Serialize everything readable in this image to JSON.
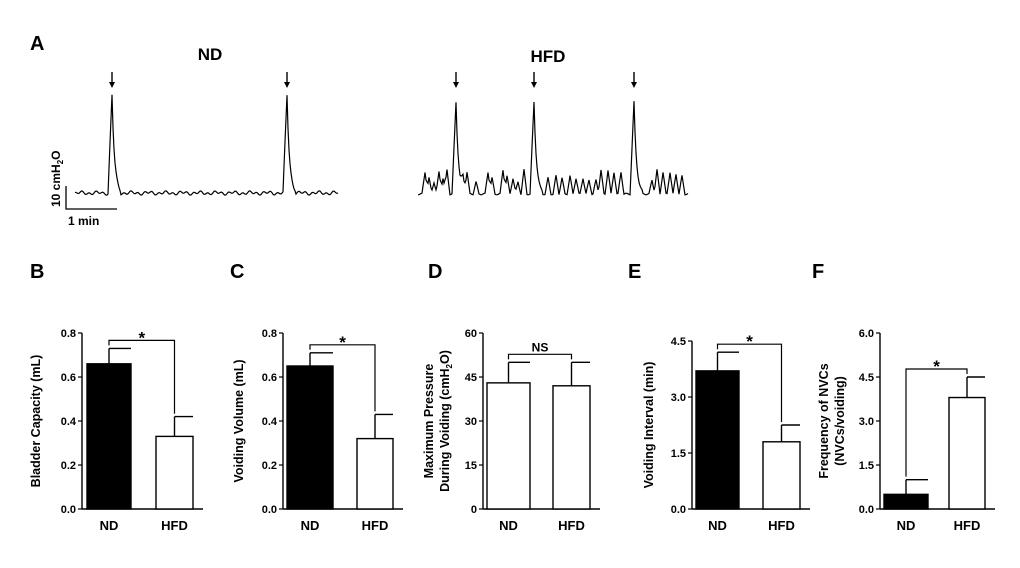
{
  "chart_data": [
    {
      "panel": "A",
      "type": "line",
      "traces": [
        {
          "name": "ND",
          "arrow_count": 2
        },
        {
          "name": "HFD",
          "arrow_count": 3
        }
      ],
      "scale_bar": {
        "y_label": "10 cmH2O",
        "x_label": "1 min"
      }
    },
    {
      "panel": "B",
      "type": "bar",
      "categories": [
        "ND",
        "HFD"
      ],
      "values": [
        0.66,
        0.33
      ],
      "errors": [
        0.07,
        0.09
      ],
      "fills": [
        "#000000",
        "#ffffff"
      ],
      "ylabel": "Bladder Capacity (mL)",
      "ylim": [
        0,
        0.8
      ],
      "yticks": [
        "0.0",
        "0.2",
        "0.4",
        "0.6",
        "0.8"
      ],
      "significance": "*"
    },
    {
      "panel": "C",
      "type": "bar",
      "categories": [
        "ND",
        "HFD"
      ],
      "values": [
        0.65,
        0.32
      ],
      "errors": [
        0.06,
        0.11
      ],
      "fills": [
        "#000000",
        "#ffffff"
      ],
      "ylabel": "Voiding Volume (mL)",
      "ylim": [
        0,
        0.8
      ],
      "yticks": [
        "0.0",
        "0.2",
        "0.4",
        "0.6",
        "0.8"
      ],
      "significance": "*"
    },
    {
      "panel": "D",
      "type": "bar",
      "categories": [
        "ND",
        "HFD"
      ],
      "values": [
        43,
        42
      ],
      "errors": [
        7,
        8
      ],
      "fills": [
        "#ffffff",
        "#ffffff"
      ],
      "ylabel": [
        "Maximum Pressure",
        "During Voiding (cmH2O)"
      ],
      "ylim": [
        0,
        60
      ],
      "yticks": [
        "0",
        "15",
        "30",
        "45",
        "60"
      ],
      "significance": "NS"
    },
    {
      "panel": "E",
      "type": "bar",
      "categories": [
        "ND",
        "HFD"
      ],
      "values": [
        3.7,
        1.8
      ],
      "errors": [
        0.5,
        0.45
      ],
      "fills": [
        "#000000",
        "#ffffff"
      ],
      "ylabel": "Voiding Interval (min)",
      "ylim": [
        0,
        4.5
      ],
      "yticks": [
        "0.0",
        "1.5",
        "3.0",
        "4.5"
      ],
      "significance": "*"
    },
    {
      "panel": "F",
      "type": "bar",
      "categories": [
        "ND",
        "HFD"
      ],
      "values": [
        0.5,
        3.8
      ],
      "errors": [
        0.5,
        0.7
      ],
      "fills": [
        "#000000",
        "#ffffff"
      ],
      "ylabel": [
        "Frequency of NVCs",
        "(NVCs/voiding)"
      ],
      "ylim": [
        0,
        6.0
      ],
      "yticks": [
        "0.0",
        "1.5",
        "3.0",
        "4.5",
        "6.0"
      ],
      "significance": "*"
    }
  ]
}
